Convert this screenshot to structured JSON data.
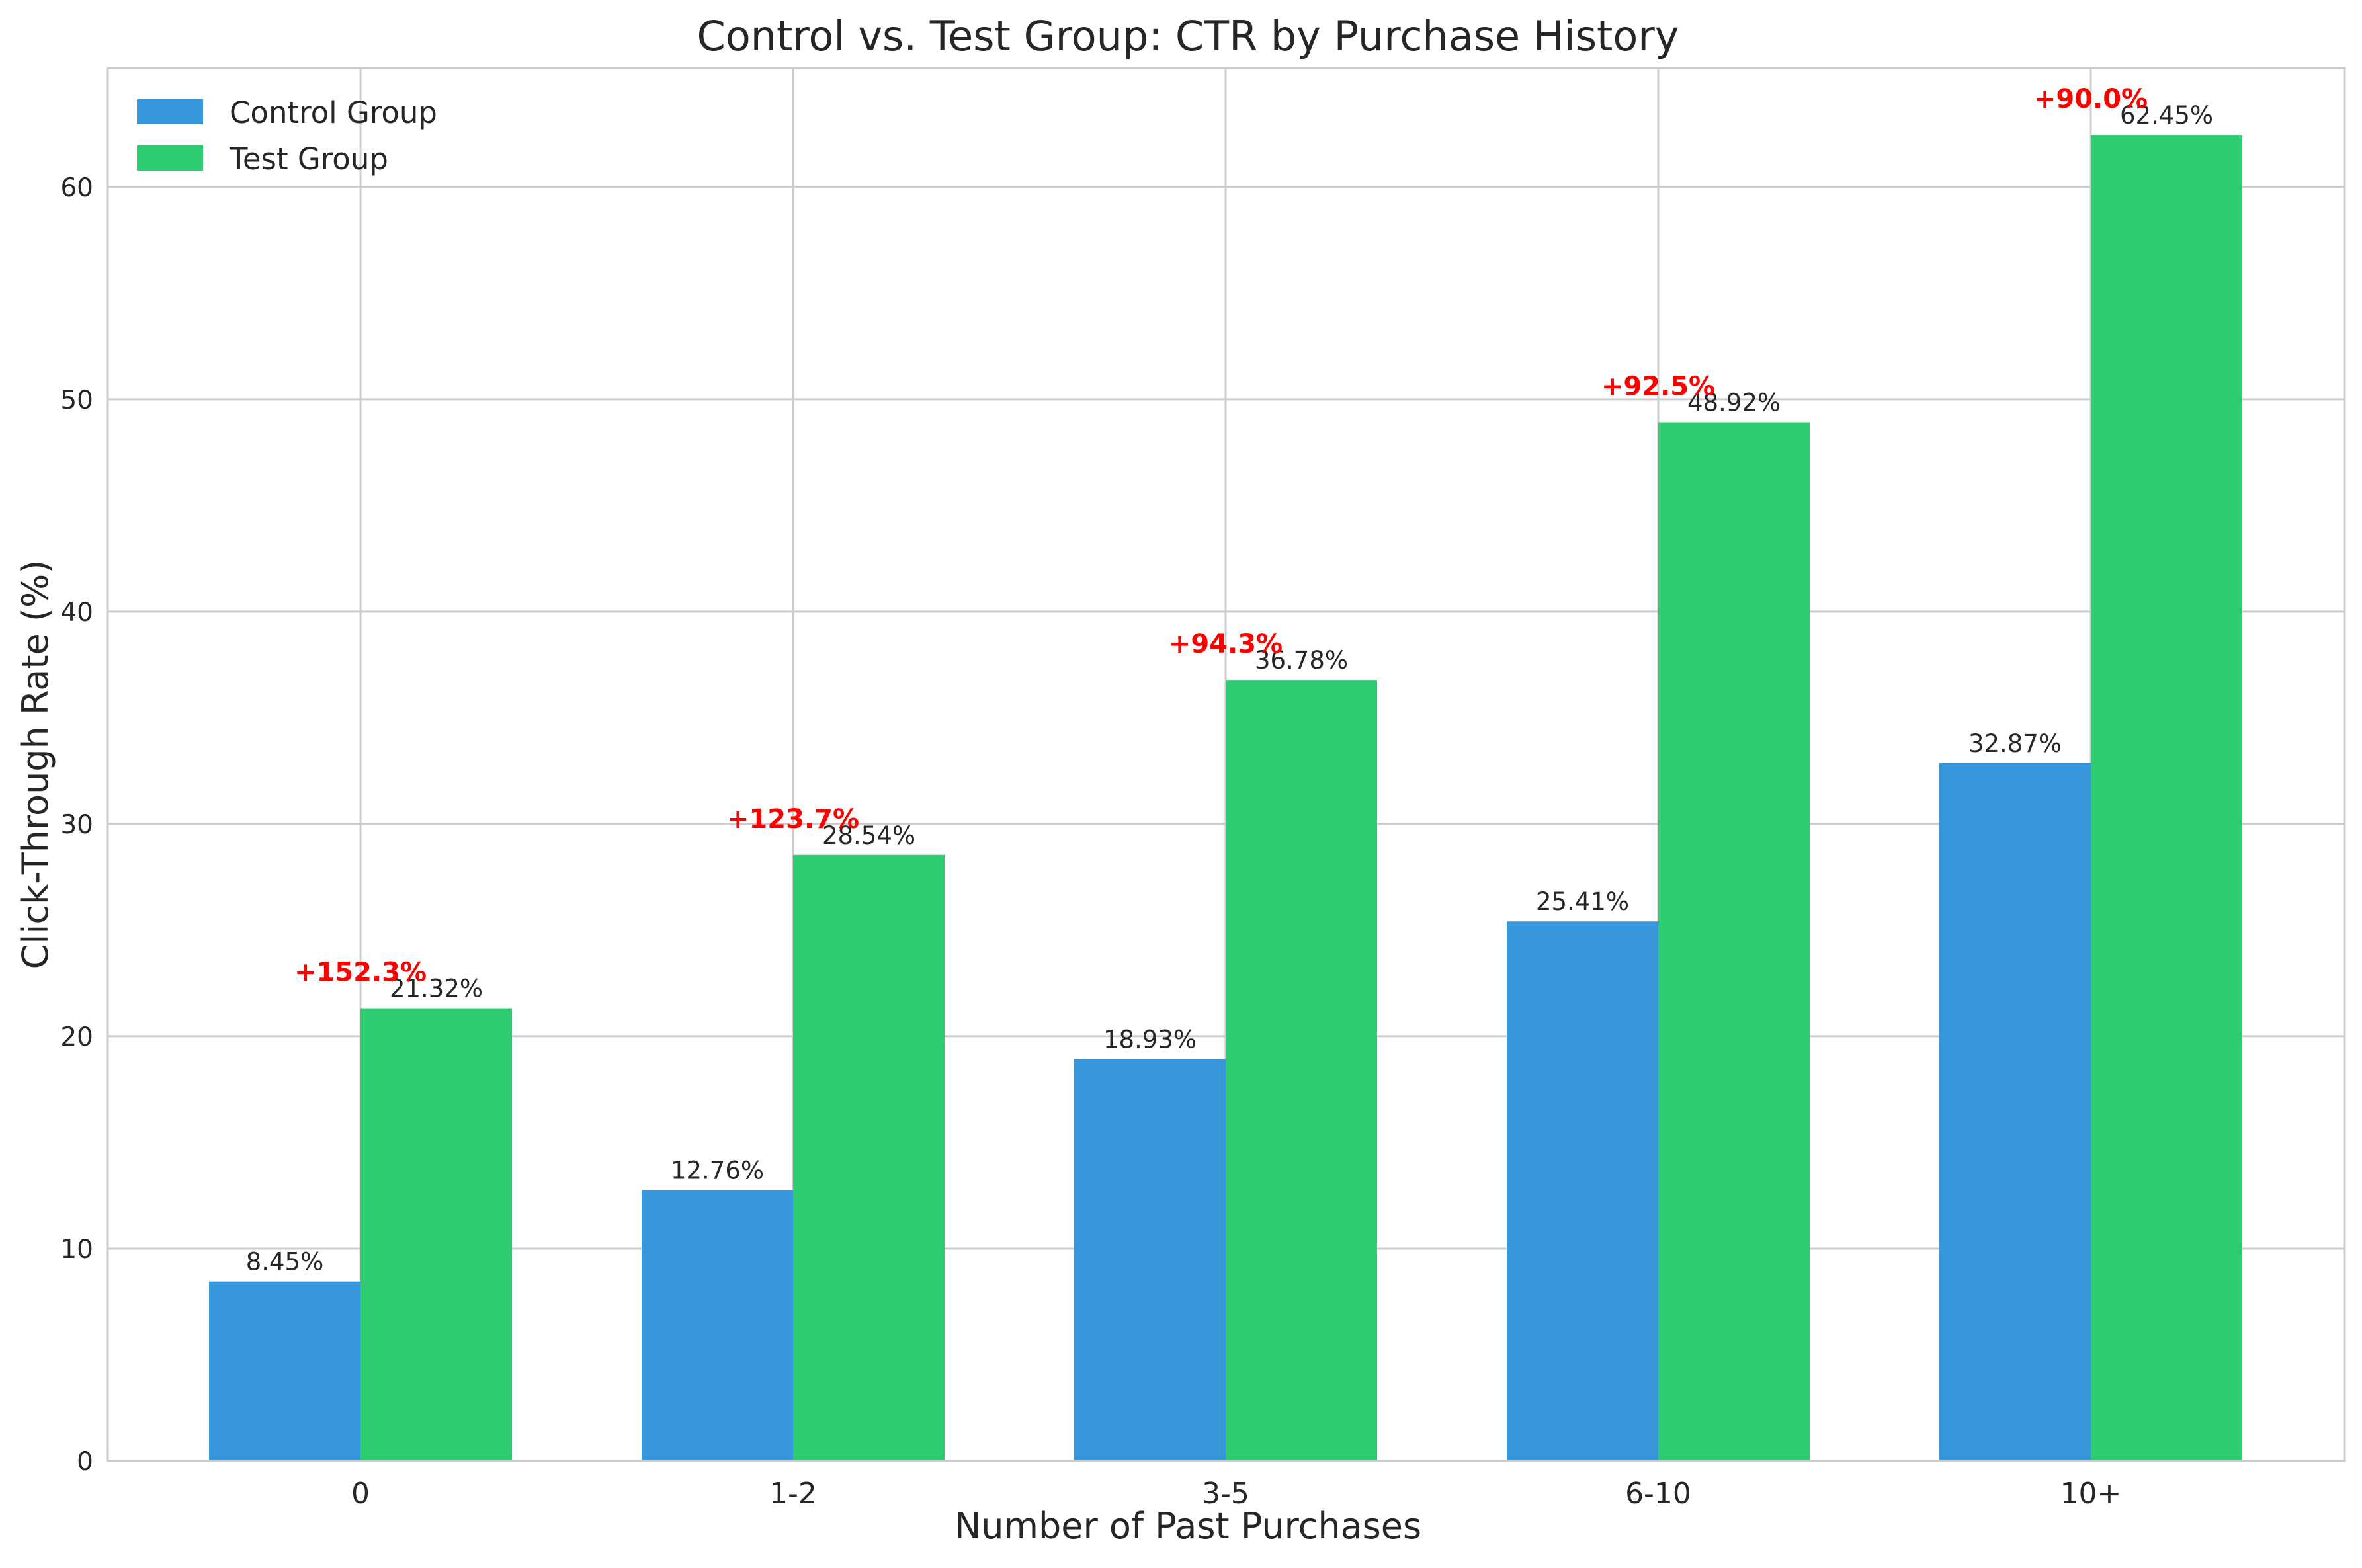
{
  "chart_data": {
    "type": "bar",
    "title": "Control vs. Test Group: CTR by Purchase History",
    "xlabel": "Number of Past Purchases",
    "ylabel": "Click-Through Rate (%)",
    "categories": [
      "0",
      "1-2",
      "3-5",
      "6-10",
      "10+"
    ],
    "series": [
      {
        "name": "Control Group",
        "color": "#3897db",
        "values": [
          8.45,
          12.76,
          18.93,
          25.41,
          32.87
        ],
        "labels": [
          "8.45%",
          "12.76%",
          "18.93%",
          "25.41%",
          "32.87%"
        ]
      },
      {
        "name": "Test Group",
        "color": "#2ecc71",
        "values": [
          21.32,
          28.54,
          36.78,
          48.92,
          62.45
        ],
        "labels": [
          "21.32%",
          "28.54%",
          "36.78%",
          "48.92%",
          "62.45%"
        ]
      }
    ],
    "improvements": [
      "+152.3%",
      "+123.7%",
      "+94.3%",
      "+92.5%",
      "+90.0%"
    ],
    "improvement_color": "#ff0000",
    "ylim": [
      0,
      65.6
    ],
    "yticks": [
      0,
      10,
      20,
      30,
      40,
      50,
      60
    ],
    "grid": true,
    "legend_position": "top-left"
  }
}
